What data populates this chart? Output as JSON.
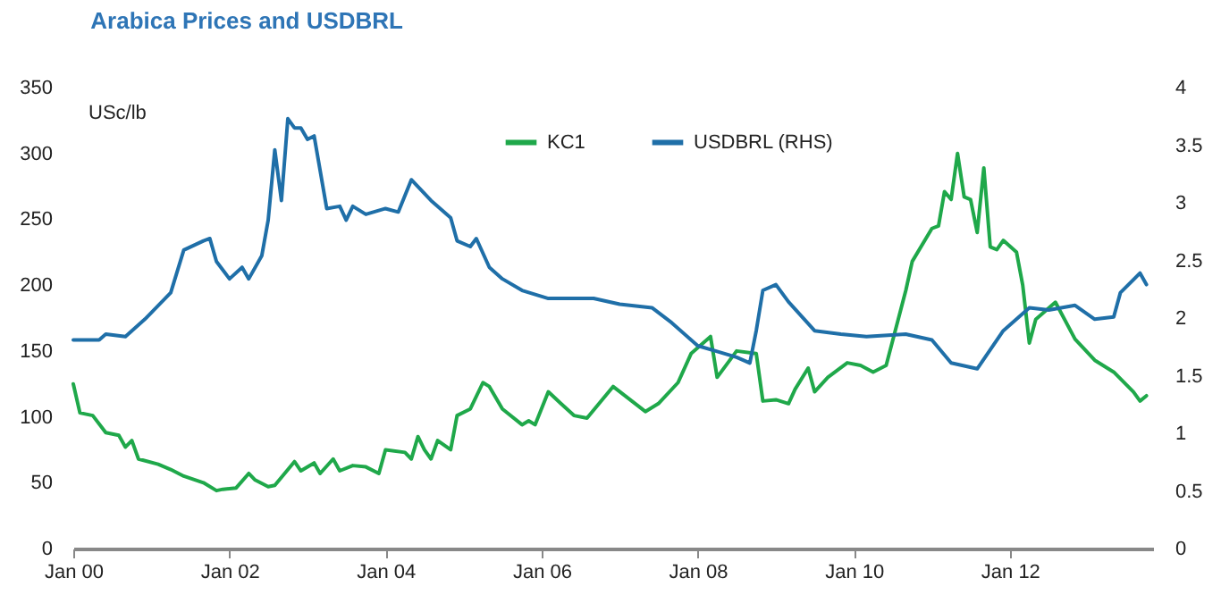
{
  "chart_data": {
    "type": "line",
    "title": "Arabica Prices and USDBRL",
    "ylabel": "USc/lb",
    "xlim": [
      "2000-01",
      "2013-11"
    ],
    "xticks": [
      {
        "value": "2000-01",
        "label": "Jan 00"
      },
      {
        "value": "2002-01",
        "label": "Jan 02"
      },
      {
        "value": "2004-01",
        "label": "Jan 04"
      },
      {
        "value": "2006-01",
        "label": "Jan 06"
      },
      {
        "value": "2008-01",
        "label": "Jan 08"
      },
      {
        "value": "2010-01",
        "label": "Jan 10"
      },
      {
        "value": "2012-01",
        "label": "Jan 12"
      }
    ],
    "ylim": [
      0,
      350
    ],
    "yticks": [
      0,
      50,
      100,
      150,
      200,
      250,
      300,
      350
    ],
    "y2lim": [
      0,
      4
    ],
    "y2ticks": [
      0,
      0.5,
      1,
      1.5,
      2,
      2.5,
      3,
      3.5,
      4
    ],
    "legend": "top",
    "grid": false,
    "series": [
      {
        "name": "KC1",
        "color": "#1fa84a",
        "x": [
          "2000-01",
          "2000-02",
          "2000-04",
          "2000-06",
          "2000-08",
          "2000-09",
          "2000-10",
          "2000-11",
          "2001-02",
          "2001-04",
          "2001-06",
          "2001-09",
          "2001-11",
          "2001-12",
          "2002-02",
          "2002-04",
          "2002-05",
          "2002-07",
          "2002-08",
          "2002-11",
          "2002-12",
          "2003-02",
          "2003-03",
          "2003-05",
          "2003-06",
          "2003-08",
          "2003-10",
          "2003-12",
          "2004-01",
          "2004-04",
          "2004-05",
          "2004-06",
          "2004-07",
          "2004-08",
          "2004-09",
          "2004-11",
          "2004-12",
          "2005-02",
          "2005-04",
          "2005-05",
          "2005-07",
          "2005-10",
          "2005-11",
          "2005-12",
          "2006-02",
          "2006-04",
          "2006-06",
          "2006-08",
          "2006-12",
          "2007-05",
          "2007-07",
          "2007-10",
          "2007-12",
          "2008-03",
          "2008-04",
          "2008-07",
          "2008-10",
          "2008-11",
          "2009-01",
          "2009-03",
          "2009-04",
          "2009-06",
          "2009-07",
          "2009-09",
          "2009-12",
          "2010-02",
          "2010-04",
          "2010-06",
          "2010-09",
          "2010-10",
          "2011-01",
          "2011-02",
          "2011-03",
          "2011-04",
          "2011-05",
          "2011-06",
          "2011-07",
          "2011-08",
          "2011-09",
          "2011-10",
          "2011-11",
          "2011-12",
          "2012-02",
          "2012-03",
          "2012-04",
          "2012-05",
          "2012-08",
          "2012-11",
          "2013-02",
          "2013-05",
          "2013-08",
          "2013-09",
          "2013-10"
        ],
        "values": [
          125,
          103,
          101,
          88,
          86,
          77,
          82,
          68,
          64,
          60,
          55,
          50,
          44,
          45,
          46,
          57,
          52,
          47,
          48,
          66,
          59,
          65,
          57,
          68,
          59,
          63,
          62,
          57,
          75,
          73,
          68,
          85,
          75,
          68,
          82,
          75,
          101,
          106,
          126,
          123,
          106,
          94,
          97,
          94,
          119,
          110,
          101,
          99,
          123,
          104,
          110,
          126,
          148,
          161,
          130,
          150,
          148,
          112,
          113,
          110,
          121,
          137,
          119,
          130,
          141,
          139,
          134,
          139,
          196,
          218,
          243,
          245,
          271,
          265,
          300,
          267,
          265,
          240,
          289,
          229,
          227,
          234,
          225,
          200,
          156,
          174,
          187,
          159,
          143,
          134,
          119,
          112,
          116
        ]
      },
      {
        "name": "USDBRL (RHS)",
        "color": "#1f6fa8",
        "axis": "y2",
        "x": [
          "2000-01",
          "2000-05",
          "2000-06",
          "2000-09",
          "2000-12",
          "2001-04",
          "2001-06",
          "2001-09",
          "2001-10",
          "2001-11",
          "2002-01",
          "2002-03",
          "2002-04",
          "2002-06",
          "2002-07",
          "2002-08",
          "2002-09",
          "2002-10",
          "2002-11",
          "2002-12",
          "2003-01",
          "2003-02",
          "2003-04",
          "2003-06",
          "2003-07",
          "2003-08",
          "2003-10",
          "2004-01",
          "2004-03",
          "2004-05",
          "2004-08",
          "2004-11",
          "2004-12",
          "2005-02",
          "2005-03",
          "2005-05",
          "2005-07",
          "2005-10",
          "2006-02",
          "2006-09",
          "2007-01",
          "2007-06",
          "2007-09",
          "2008-01",
          "2008-04",
          "2008-07",
          "2008-09",
          "2008-10",
          "2008-11",
          "2009-01",
          "2009-03",
          "2009-07",
          "2009-11",
          "2010-03",
          "2010-09",
          "2011-01",
          "2011-04",
          "2011-08",
          "2011-12",
          "2012-04",
          "2012-07",
          "2012-11",
          "2013-02",
          "2013-05",
          "2013-06",
          "2013-09",
          "2013-10"
        ],
        "values": [
          1.81,
          1.81,
          1.86,
          1.84,
          1.99,
          2.22,
          2.59,
          2.67,
          2.69,
          2.49,
          2.34,
          2.44,
          2.34,
          2.54,
          2.85,
          3.46,
          3.02,
          3.73,
          3.65,
          3.65,
          3.55,
          3.58,
          2.95,
          2.97,
          2.85,
          2.97,
          2.9,
          2.95,
          2.92,
          3.2,
          3.02,
          2.87,
          2.67,
          2.62,
          2.69,
          2.44,
          2.34,
          2.24,
          2.17,
          2.17,
          2.12,
          2.09,
          1.96,
          1.76,
          1.71,
          1.66,
          1.61,
          1.89,
          2.24,
          2.29,
          2.14,
          1.89,
          1.86,
          1.84,
          1.86,
          1.81,
          1.61,
          1.56,
          1.89,
          2.09,
          2.07,
          2.11,
          1.99,
          2.01,
          2.22,
          2.39,
          2.29
        ]
      }
    ]
  }
}
